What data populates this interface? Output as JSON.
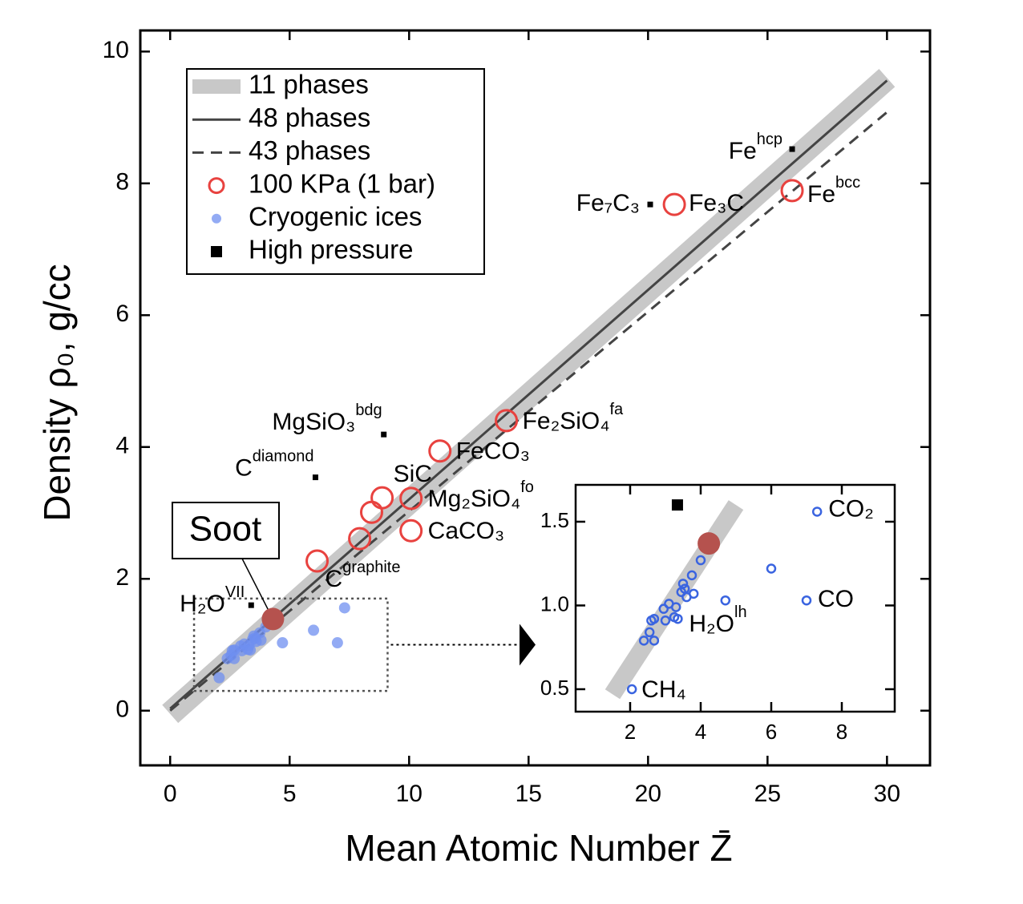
{
  "chart_data": [
    {
      "type": "scatter",
      "xlabel": "Mean Atomic Number Z̄",
      "ylabel": "Density ρ₀,  g/cc",
      "xlim": [
        -1.25,
        31.8
      ],
      "ylim": [
        -0.83,
        10.32
      ],
      "xticks": [
        0,
        5,
        10,
        15,
        20,
        25,
        30
      ],
      "yticks": [
        0,
        2,
        4,
        6,
        8,
        10
      ],
      "legend": "upper left",
      "series": [
        {
          "name": "11 phases",
          "style": "band",
          "color": "#c8c8c8",
          "x": [
            0,
            30
          ],
          "values": [
            -0.05,
            9.6
          ]
        },
        {
          "name": "48 phases",
          "style": "solid",
          "color": "#444444",
          "x": [
            0,
            30
          ],
          "values": [
            0.03,
            9.56
          ]
        },
        {
          "name": "43 phases",
          "style": "dashed",
          "color": "#444444",
          "x": [
            0,
            30
          ],
          "values": [
            0,
            9.08
          ]
        },
        {
          "name": "100 KPa (1 bar)",
          "style": "hollow",
          "color": "#e8423f",
          "x": [
            6.15,
            7.93,
            8.43,
            8.87,
            10.08,
            10.08,
            11.29,
            14.07,
            21.1,
            26.03
          ],
          "values": [
            2.27,
            2.61,
            3.01,
            3.23,
            3.22,
            2.73,
            3.94,
            4.4,
            7.68,
            7.89
          ],
          "labels": [
            {
              "text": "C",
              "sup": "graphite"
            },
            null,
            null,
            {
              "text": "SiC"
            },
            {
              "text": "Mg₂SiO₄",
              "sup": "fo"
            },
            {
              "text": "CaCO₃"
            },
            {
              "text": "FeCO₃"
            },
            {
              "text": "Fe₂SiO₄",
              "sup": "fa"
            },
            {
              "text": "Fe₃C"
            },
            {
              "text": "Fe",
              "sup": "bcc"
            }
          ]
        },
        {
          "name": "Cryogenic ices",
          "style": "dot",
          "color": "#6f8ff0",
          "x": [
            2.05,
            2.39,
            2.55,
            2.68,
            2.6,
            2.68,
            2.95,
            3.0,
            3.1,
            3.25,
            3.3,
            3.35,
            3.45,
            3.5,
            3.55,
            3.6,
            3.75,
            3.8,
            4.0,
            4.7,
            6.0,
            7.0,
            7.3
          ],
          "values": [
            0.5,
            0.79,
            0.84,
            0.79,
            0.91,
            0.92,
            0.98,
            0.91,
            1.01,
            0.93,
            0.99,
            0.92,
            1.08,
            1.13,
            1.1,
            1.05,
            1.18,
            1.07,
            1.27,
            1.03,
            1.22,
            1.03,
            1.56
          ]
        },
        {
          "name": "High pressure",
          "style": "square",
          "color": "#000000",
          "x": [
            3.39,
            6.08,
            8.94,
            20.09,
            26.03
          ],
          "values": [
            1.6,
            3.54,
            4.19,
            7.68,
            8.52
          ],
          "labels": [
            {
              "text": "H₂O",
              "sup": "VII"
            },
            {
              "text": "C",
              "sup": "diamond"
            },
            {
              "text": "MgSiO₃",
              "sup": "bdg"
            },
            {
              "text": "Fe₇C₃"
            },
            {
              "text": "Fe",
              "sup": "hcp"
            }
          ]
        }
      ],
      "highlight": {
        "label": "Soot",
        "x": 4.3,
        "y": 1.39,
        "color": "#b5524e"
      },
      "zoom_box": {
        "x": [
          1.0,
          9.1
        ],
        "y": [
          0.3,
          1.7
        ]
      }
    },
    {
      "type": "scatter",
      "xlim": [
        0.455,
        9.5
      ],
      "ylim": [
        0.366,
        1.72
      ],
      "xticks": [
        2,
        4,
        6,
        8
      ],
      "yticks": [
        0.5,
        {
          "value": 1.0,
          "label": "1.0"
        },
        1.5
      ],
      "series": [
        {
          "style": "band",
          "color": "#c8c8c8",
          "x": [
            1.5,
            5.0
          ],
          "values": [
            0.47,
            1.6
          ]
        },
        {
          "style": "ring",
          "color": "#3a64e0",
          "x": [
            2.05,
            2.39,
            2.55,
            2.68,
            2.6,
            2.68,
            2.95,
            3.0,
            3.1,
            3.25,
            3.3,
            3.35,
            3.45,
            3.5,
            3.55,
            3.6,
            3.75,
            3.8,
            4.0,
            4.7,
            6.0,
            7.0,
            7.3
          ],
          "values": [
            0.5,
            0.79,
            0.84,
            0.79,
            0.91,
            0.92,
            0.98,
            0.91,
            1.01,
            0.93,
            0.99,
            0.92,
            1.08,
            1.13,
            1.1,
            1.05,
            1.18,
            1.07,
            1.27,
            1.03,
            1.22,
            1.03,
            1.56
          ],
          "labels": [
            {
              "text": "CH₄"
            },
            null,
            null,
            null,
            null,
            null,
            null,
            null,
            null,
            null,
            null,
            {
              "text": "H₂O",
              "sup": "lh"
            },
            null,
            null,
            null,
            null,
            null,
            null,
            null,
            null,
            null,
            {
              "text": "CO"
            },
            {
              "text": "CO₂"
            }
          ]
        },
        {
          "style": "square",
          "color": "#000000",
          "x": [
            3.34
          ],
          "values": [
            1.6
          ]
        },
        {
          "style": "filled",
          "color": "#b5524e",
          "x": [
            4.23
          ],
          "values": [
            1.37
          ]
        }
      ]
    }
  ]
}
